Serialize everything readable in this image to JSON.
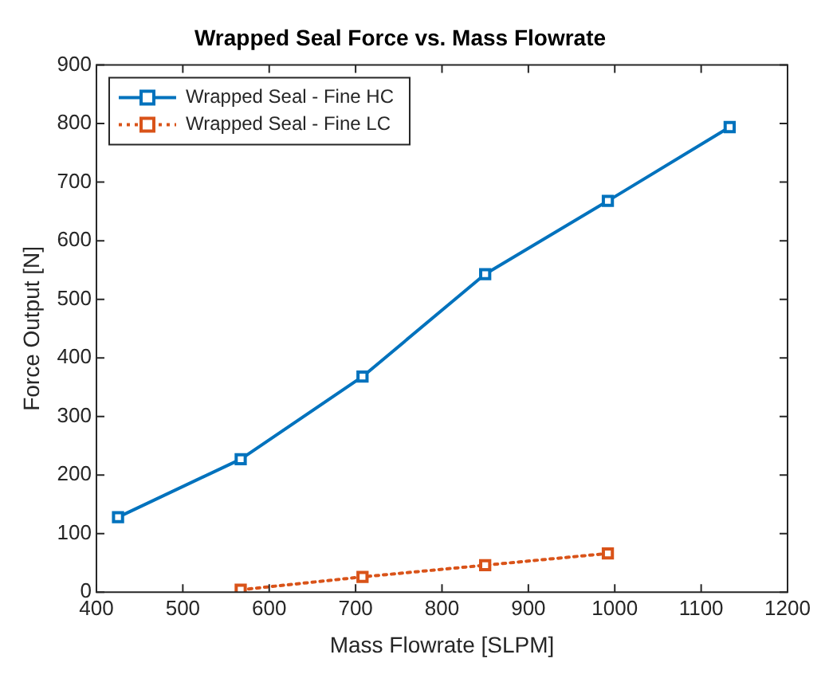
{
  "chart_data": {
    "type": "line",
    "title": "Wrapped Seal Force vs. Mass Flowrate",
    "xlabel": "Mass Flowrate [SLPM]",
    "ylabel": "Force Output [N]",
    "x": [
      425,
      567,
      708,
      850,
      992,
      1133
    ],
    "series": [
      {
        "name": "Wrapped Seal - Fine HC",
        "color": "#0072bd",
        "line_style": "solid",
        "values": [
          128,
          227,
          368,
          543,
          668,
          794
        ]
      },
      {
        "name": "Wrapped Seal - Fine LC",
        "color": "#d95319",
        "line_style": "dotted",
        "x": [
          567,
          708,
          850,
          992
        ],
        "values": [
          4,
          26,
          46,
          66
        ]
      }
    ],
    "xlim": [
      400,
      1200
    ],
    "xticks": [
      400,
      500,
      600,
      700,
      800,
      900,
      1000,
      1100,
      1200
    ],
    "ylim": [
      0,
      900
    ],
    "yticks": [
      0,
      100,
      200,
      300,
      400,
      500,
      600,
      700,
      800,
      900
    ],
    "grid": false,
    "legend": "top left",
    "marker": "square"
  }
}
